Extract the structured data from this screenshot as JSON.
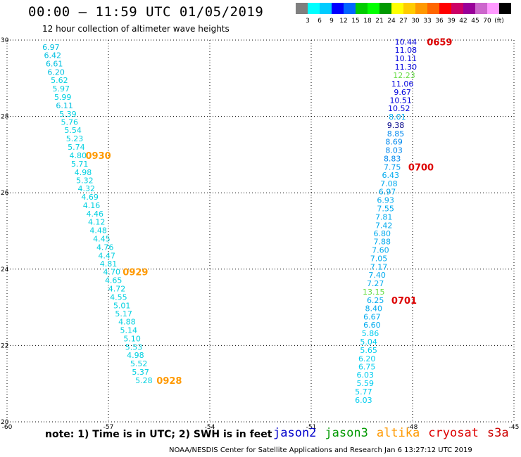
{
  "header": {
    "title": "00:00 – 11:59 UTC 01/05/2019",
    "subtitle": "12 hour collection of altimeter wave heights"
  },
  "scale": {
    "colors": [
      "#7f7f7f",
      "#00ffff",
      "#00ccff",
      "#0000ff",
      "#0066ff",
      "#00cc00",
      "#00ff00",
      "#009900",
      "#ffff00",
      "#ffcc00",
      "#ff9900",
      "#ff6600",
      "#ff0000",
      "#cc0066",
      "#990099",
      "#cc66cc",
      "#ff99ff",
      "#000000"
    ],
    "labels": [
      "3",
      "6",
      "9",
      "12",
      "15",
      "18",
      "21",
      "24",
      "27",
      "30",
      "33",
      "36",
      "39",
      "42",
      "45",
      "70",
      "(ft)"
    ]
  },
  "footer": {
    "note": "note: 1) Time is in UTC; 2) SWH is in feet",
    "credit": "NOAA/NESDIS Center for Satellite Applications and Research   Jan  6 13:27:12 UTC 2019"
  },
  "legend": [
    {
      "name": "jason2",
      "color": "#0000cc"
    },
    {
      "name": "jason3",
      "color": "#009900"
    },
    {
      "name": "altika",
      "color": "#ff9900"
    },
    {
      "name": "cryosat",
      "color": "#dd0000"
    },
    {
      "name": "s3a",
      "color": "#cc0000"
    }
  ],
  "chart_data": {
    "type": "scatter",
    "xlim": [
      -60,
      -45
    ],
    "ylim": [
      20,
      30
    ],
    "xticks": [
      "-60",
      "-57",
      "-54",
      "-51",
      "-48",
      "-45"
    ],
    "yticks": [
      "20",
      "22",
      "24",
      "26",
      "28",
      "30"
    ],
    "xvals": [
      -60,
      -57,
      -54,
      -51,
      -48,
      -45
    ],
    "yvals": [
      20,
      22,
      24,
      26,
      28,
      30
    ],
    "grid": true,
    "track_left": {
      "satellite": "altika",
      "points": [
        {
          "x": -58.7,
          "y": 29.82,
          "v": "6.97",
          "c": "#00bfe0"
        },
        {
          "x": -58.65,
          "y": 29.6,
          "v": "6.42",
          "c": "#00bfe0"
        },
        {
          "x": -58.6,
          "y": 29.38,
          "v": "6.61",
          "c": "#00bfe0"
        },
        {
          "x": -58.55,
          "y": 29.16,
          "v": "6.20",
          "c": "#00bfe0"
        },
        {
          "x": -58.45,
          "y": 28.95,
          "v": "5.62",
          "c": "#00d0e0"
        },
        {
          "x": -58.4,
          "y": 28.73,
          "v": "5.97",
          "c": "#00d0e0"
        },
        {
          "x": -58.35,
          "y": 28.51,
          "v": "5.99",
          "c": "#00d0e0"
        },
        {
          "x": -58.3,
          "y": 28.29,
          "v": "6.11",
          "c": "#00bfe0"
        },
        {
          "x": -58.2,
          "y": 28.07,
          "v": "5.39",
          "c": "#00d0e0"
        },
        {
          "x": -58.15,
          "y": 27.85,
          "v": "5.76",
          "c": "#00d0e0"
        },
        {
          "x": -58.05,
          "y": 27.64,
          "v": "5.54",
          "c": "#00d0e0"
        },
        {
          "x": -58.0,
          "y": 27.42,
          "v": "5.23",
          "c": "#00d0e0"
        },
        {
          "x": -57.95,
          "y": 27.2,
          "v": "5.74",
          "c": "#00d0e0"
        },
        {
          "x": -57.9,
          "y": 26.98,
          "v": "4.80",
          "c": "#00d0e0"
        },
        {
          "x": -57.85,
          "y": 26.76,
          "v": "5.71",
          "c": "#00d0e0"
        },
        {
          "x": -57.75,
          "y": 26.54,
          "v": "4.98",
          "c": "#00d0e0"
        },
        {
          "x": -57.7,
          "y": 26.33,
          "v": "5.32",
          "c": "#00d0e0"
        },
        {
          "x": -57.65,
          "y": 26.11,
          "v": "4.32",
          "c": "#00d0e0"
        },
        {
          "x": -57.55,
          "y": 25.89,
          "v": "4.69",
          "c": "#00d0e0"
        },
        {
          "x": -57.5,
          "y": 25.67,
          "v": "4.16",
          "c": "#00d0e0"
        },
        {
          "x": -57.4,
          "y": 25.45,
          "v": "4.46",
          "c": "#00d0e0"
        },
        {
          "x": -57.35,
          "y": 25.24,
          "v": "4.12",
          "c": "#00d0e0"
        },
        {
          "x": -57.3,
          "y": 25.02,
          "v": "4.48",
          "c": "#00d0e0"
        },
        {
          "x": -57.2,
          "y": 24.8,
          "v": "4.45",
          "c": "#00d0e0"
        },
        {
          "x": -57.1,
          "y": 24.58,
          "v": "4.76",
          "c": "#00d0e0"
        },
        {
          "x": -57.05,
          "y": 24.36,
          "v": "4.47",
          "c": "#00d0e0"
        },
        {
          "x": -57.0,
          "y": 24.14,
          "v": "4.81",
          "c": "#00d0e0"
        },
        {
          "x": -56.9,
          "y": 23.93,
          "v": "4.70",
          "c": "#00d0e0"
        },
        {
          "x": -56.85,
          "y": 23.71,
          "v": "4.65",
          "c": "#00d0e0"
        },
        {
          "x": -56.75,
          "y": 23.49,
          "v": "4.72",
          "c": "#00d0e0"
        },
        {
          "x": -56.7,
          "y": 23.27,
          "v": "4.55",
          "c": "#00d0e0"
        },
        {
          "x": -56.6,
          "y": 23.05,
          "v": "5.01",
          "c": "#00d0e0"
        },
        {
          "x": -56.55,
          "y": 22.84,
          "v": "5.17",
          "c": "#00d0e0"
        },
        {
          "x": -56.45,
          "y": 22.62,
          "v": "4.88",
          "c": "#00d0e0"
        },
        {
          "x": -56.4,
          "y": 22.4,
          "v": "5.14",
          "c": "#00d0e0"
        },
        {
          "x": -56.3,
          "y": 22.18,
          "v": "5.10",
          "c": "#00d0e0"
        },
        {
          "x": -56.25,
          "y": 21.96,
          "v": "5.53",
          "c": "#00d0e0"
        },
        {
          "x": -56.2,
          "y": 21.75,
          "v": "4.98",
          "c": "#00d0e0"
        },
        {
          "x": -56.1,
          "y": 21.53,
          "v": "5.52",
          "c": "#00d0e0"
        },
        {
          "x": -56.05,
          "y": 21.31,
          "v": "5.37",
          "c": "#00d0e0"
        },
        {
          "x": -55.95,
          "y": 21.09,
          "v": "5.28",
          "c": "#00d0e0"
        }
      ],
      "times": [
        {
          "x": -57.3,
          "y": 26.98,
          "t": "0930",
          "c": "#ff9900"
        },
        {
          "x": -56.2,
          "y": 23.93,
          "t": "0929",
          "c": "#ff9900"
        },
        {
          "x": -55.2,
          "y": 21.09,
          "t": "0928",
          "c": "#ff9900"
        }
      ]
    },
    "track_right": {
      "points": [
        {
          "x": -48.2,
          "y": 29.95,
          "v": "10.44",
          "c": "#0000dd"
        },
        {
          "x": -48.2,
          "y": 29.74,
          "v": "11.08",
          "c": "#0000dd"
        },
        {
          "x": -48.2,
          "y": 29.52,
          "v": "10.11",
          "c": "#0000dd"
        },
        {
          "x": -48.2,
          "y": 29.3,
          "v": "11.30",
          "c": "#0000dd"
        },
        {
          "x": -48.25,
          "y": 29.08,
          "v": "12.23",
          "c": "#66dd44"
        },
        {
          "x": -48.3,
          "y": 28.86,
          "v": "11.06",
          "c": "#0000dd"
        },
        {
          "x": -48.3,
          "y": 28.64,
          "v": "9.67",
          "c": "#0000dd"
        },
        {
          "x": -48.35,
          "y": 28.43,
          "v": "10.51",
          "c": "#0000dd"
        },
        {
          "x": -48.4,
          "y": 28.21,
          "v": "10.52",
          "c": "#0000dd"
        },
        {
          "x": -48.45,
          "y": 27.99,
          "v": "8.01",
          "c": "#00aaee"
        },
        {
          "x": -48.5,
          "y": 27.77,
          "v": "9.38",
          "c": "#000088"
        },
        {
          "x": -48.5,
          "y": 27.55,
          "v": "8.85",
          "c": "#0088ee"
        },
        {
          "x": -48.55,
          "y": 27.34,
          "v": "8.69",
          "c": "#0088ee"
        },
        {
          "x": -48.55,
          "y": 27.12,
          "v": "8.03",
          "c": "#0088ee"
        },
        {
          "x": -48.6,
          "y": 26.9,
          "v": "8.83",
          "c": "#0088ee"
        },
        {
          "x": -48.6,
          "y": 26.68,
          "v": "7.75",
          "c": "#0099ee"
        },
        {
          "x": -48.65,
          "y": 26.46,
          "v": "6.43",
          "c": "#00aaee"
        },
        {
          "x": -48.7,
          "y": 26.24,
          "v": "7.08",
          "c": "#00aaee"
        },
        {
          "x": -48.75,
          "y": 26.03,
          "v": "6.97",
          "c": "#00aaee"
        },
        {
          "x": -48.8,
          "y": 25.81,
          "v": "6.93",
          "c": "#00aaee"
        },
        {
          "x": -48.8,
          "y": 25.59,
          "v": "7.55",
          "c": "#00aaee"
        },
        {
          "x": -48.85,
          "y": 25.37,
          "v": "7.81",
          "c": "#00aaee"
        },
        {
          "x": -48.85,
          "y": 25.15,
          "v": "7.42",
          "c": "#00aaee"
        },
        {
          "x": -48.9,
          "y": 24.94,
          "v": "6.80",
          "c": "#00aaee"
        },
        {
          "x": -48.9,
          "y": 24.72,
          "v": "7.88",
          "c": "#00aaee"
        },
        {
          "x": -48.95,
          "y": 24.5,
          "v": "7.60",
          "c": "#00aaee"
        },
        {
          "x": -49.0,
          "y": 24.28,
          "v": "7.05",
          "c": "#00aaee"
        },
        {
          "x": -49.0,
          "y": 24.06,
          "v": "7.17",
          "c": "#00aaee"
        },
        {
          "x": -49.05,
          "y": 23.85,
          "v": "7.40",
          "c": "#00aaee"
        },
        {
          "x": -49.1,
          "y": 23.63,
          "v": "7.27",
          "c": "#00aaee"
        },
        {
          "x": -49.15,
          "y": 23.41,
          "v": "13.15",
          "c": "#66dd44"
        },
        {
          "x": -49.1,
          "y": 23.19,
          "v": "6.25",
          "c": "#00aaee"
        },
        {
          "x": -49.15,
          "y": 22.97,
          "v": "8.40",
          "c": "#00aaee"
        },
        {
          "x": -49.2,
          "y": 22.75,
          "v": "6.67",
          "c": "#00aaee"
        },
        {
          "x": -49.2,
          "y": 22.54,
          "v": "6.60",
          "c": "#00aaee"
        },
        {
          "x": -49.25,
          "y": 22.32,
          "v": "5.86",
          "c": "#00ccee"
        },
        {
          "x": -49.3,
          "y": 22.1,
          "v": "5.04",
          "c": "#00ccee"
        },
        {
          "x": -49.3,
          "y": 21.88,
          "v": "5.65",
          "c": "#00ccee"
        },
        {
          "x": -49.35,
          "y": 21.66,
          "v": "6.20",
          "c": "#00ccee"
        },
        {
          "x": -49.35,
          "y": 21.45,
          "v": "6.75",
          "c": "#00ccee"
        },
        {
          "x": -49.4,
          "y": 21.23,
          "v": "6.03",
          "c": "#00ccee"
        },
        {
          "x": -49.4,
          "y": 21.01,
          "v": "5.59",
          "c": "#00ccee"
        },
        {
          "x": -49.45,
          "y": 20.79,
          "v": "5.77",
          "c": "#00ccee"
        },
        {
          "x": -49.45,
          "y": 20.57,
          "v": "6.03",
          "c": "#00ccee"
        }
      ],
      "times": [
        {
          "x": -47.2,
          "y": 29.95,
          "t": "0659",
          "c": "#dd0000"
        },
        {
          "x": -47.75,
          "y": 26.68,
          "t": "0700",
          "c": "#dd0000"
        },
        {
          "x": -48.25,
          "y": 23.19,
          "t": "0701",
          "c": "#dd0000"
        }
      ]
    }
  }
}
